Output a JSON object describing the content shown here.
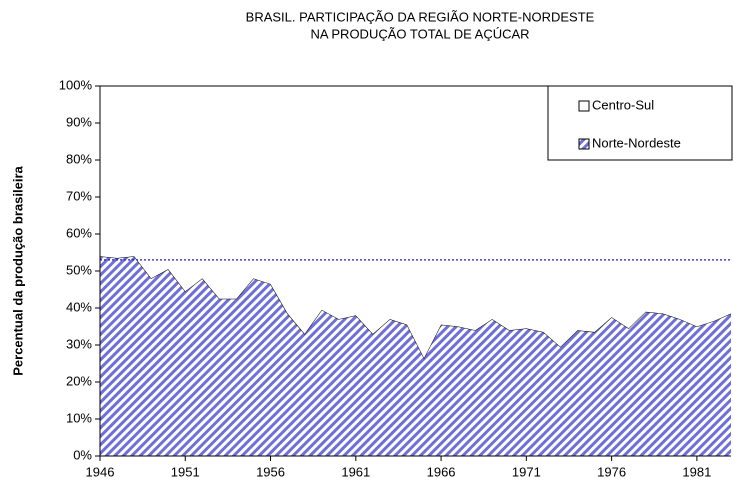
{
  "chart_data": {
    "type": "area",
    "title": [
      "BRASIL. PARTICIPAÇÃO DA REGIÃO NORTE-NORDESTE",
      "NA PRODUÇÃO TOTAL DE AÇÚCAR"
    ],
    "y_label": "Percentual da produção brasileira",
    "x": [
      1946,
      1947,
      1948,
      1949,
      1950,
      1951,
      1952,
      1953,
      1954,
      1955,
      1956,
      1957,
      1958,
      1959,
      1960,
      1961,
      1962,
      1963,
      1964,
      1965,
      1966,
      1967,
      1968,
      1969,
      1970,
      1971,
      1972,
      1973,
      1974,
      1975,
      1976,
      1977,
      1978,
      1979,
      1980,
      1981,
      1982,
      1983
    ],
    "series": [
      {
        "name": "Norte-Nordeste",
        "color": "#6f6fd8",
        "hatch": true,
        "values": [
          54,
          53.5,
          54,
          48,
          50.5,
          44.5,
          48,
          42.5,
          42.5,
          48,
          46.5,
          38.5,
          33,
          39.5,
          37,
          38,
          33,
          37,
          35.5,
          26.5,
          35.5,
          35,
          34,
          37,
          34,
          34.5,
          33.5,
          29.5,
          34,
          33.5,
          37.5,
          34.5,
          39,
          38.5,
          37,
          35,
          36.5,
          38.5
        ]
      },
      {
        "name": "Centro-Sul",
        "color": "#ffffff",
        "hatch": false,
        "values": [
          46,
          46.5,
          46,
          52,
          49.5,
          55.5,
          52,
          57.5,
          57.5,
          52,
          53.5,
          61.5,
          67,
          60.5,
          63,
          62,
          67,
          63,
          64.5,
          73.5,
          64.5,
          65,
          66,
          63,
          66,
          65.5,
          66.5,
          70.5,
          66,
          66.5,
          62.5,
          65.5,
          61,
          61.5,
          63,
          65,
          63.5,
          61.5
        ]
      }
    ],
    "stacked": true,
    "reference_line": {
      "value": 53,
      "color": "#1f1fbf"
    },
    "xlim": [
      1946,
      1983
    ],
    "xticks": [
      1946,
      1951,
      1956,
      1961,
      1966,
      1971,
      1976,
      1981
    ],
    "ylim": [
      0,
      100
    ],
    "yticks": [
      {
        "value": 0,
        "label": "0%"
      },
      {
        "value": 10,
        "label": "10%"
      },
      {
        "value": 20,
        "label": "20%"
      },
      {
        "value": 30,
        "label": "30%"
      },
      {
        "value": 40,
        "label": "40%"
      },
      {
        "value": 50,
        "label": "50%"
      },
      {
        "value": 60,
        "label": "60%"
      },
      {
        "value": 70,
        "label": "70%"
      },
      {
        "value": 80,
        "label": "80%"
      },
      {
        "value": 90,
        "label": "90%"
      },
      {
        "value": 100,
        "label": "100%"
      }
    ],
    "legend": "upper right",
    "grid": false
  }
}
